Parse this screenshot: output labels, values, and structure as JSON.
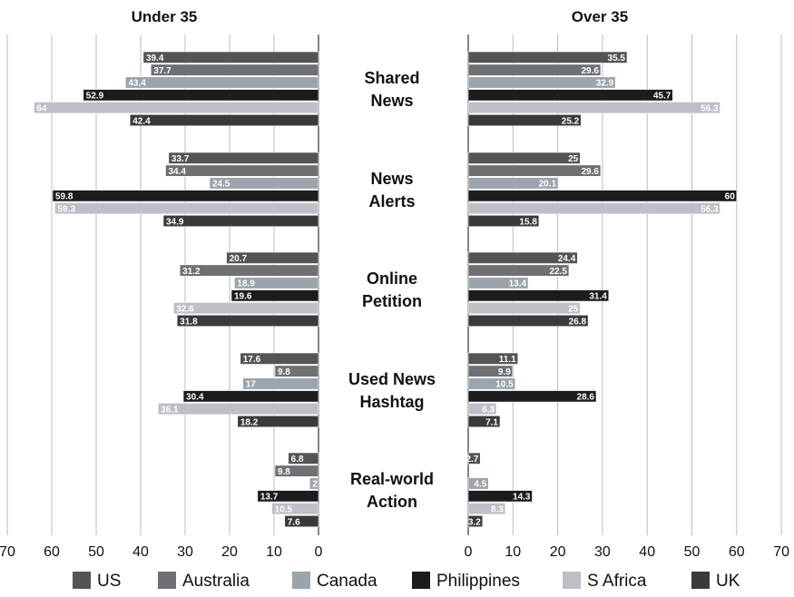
{
  "chart_data": {
    "type": "bar",
    "orientation": "horizontal",
    "layout": "butterfly",
    "categories": [
      [
        "Shared",
        "News"
      ],
      [
        "News",
        "Alerts"
      ],
      [
        "Online",
        "Petition"
      ],
      [
        "Used News",
        "Hashtag"
      ],
      [
        "Real-world",
        "Action"
      ]
    ],
    "xlim": [
      0,
      70
    ],
    "xticks": [
      0,
      10,
      20,
      30,
      40,
      50,
      60,
      70
    ],
    "grid": true,
    "legend_position": "bottom",
    "series_colors": {
      "US": "#545454",
      "Australia": "#6e7074",
      "Canada": "#9ca4ac",
      "Philippines": "#1c1c1c",
      "S Africa": "#c1bec7",
      "UK": "#3a3a3a"
    },
    "label_colors": {
      "US": "#ffffff",
      "Australia": "#ffffff",
      "Canada": "#ffffff",
      "Philippines": "#ffffff",
      "S Africa": "#ffffff",
      "UK": "#ffffff"
    },
    "panels": [
      {
        "title": "Under 35",
        "series": [
          {
            "name": "US",
            "values": [
              39.4,
              33.7,
              20.7,
              17.6,
              6.8
            ]
          },
          {
            "name": "Australia",
            "values": [
              37.7,
              34.4,
              31.2,
              9.8,
              9.8
            ]
          },
          {
            "name": "Canada",
            "values": [
              43.4,
              24.5,
              18.9,
              17,
              2
            ]
          },
          {
            "name": "Philippines",
            "values": [
              52.9,
              59.8,
              19.6,
              30.4,
              13.7
            ]
          },
          {
            "name": "S Africa",
            "values": [
              64,
              59.3,
              32.6,
              36.1,
              10.5
            ]
          },
          {
            "name": "UK",
            "values": [
              42.4,
              34.9,
              31.8,
              18.2,
              7.6
            ]
          }
        ]
      },
      {
        "title": "Over 35",
        "series": [
          {
            "name": "US",
            "values": [
              35.5,
              25,
              24.4,
              11.1,
              2.7
            ]
          },
          {
            "name": "Australia",
            "values": [
              29.6,
              29.6,
              22.5,
              9.9,
              null
            ]
          },
          {
            "name": "Canada",
            "values": [
              32.9,
              20.1,
              13.4,
              10.5,
              4.5
            ]
          },
          {
            "name": "Philippines",
            "values": [
              45.7,
              60,
              31.4,
              28.6,
              14.3
            ]
          },
          {
            "name": "S Africa",
            "values": [
              56.3,
              56.3,
              25,
              6.3,
              8.3
            ]
          },
          {
            "name": "UK",
            "values": [
              25.2,
              15.8,
              26.8,
              7.1,
              3.2
            ]
          }
        ]
      }
    ]
  }
}
